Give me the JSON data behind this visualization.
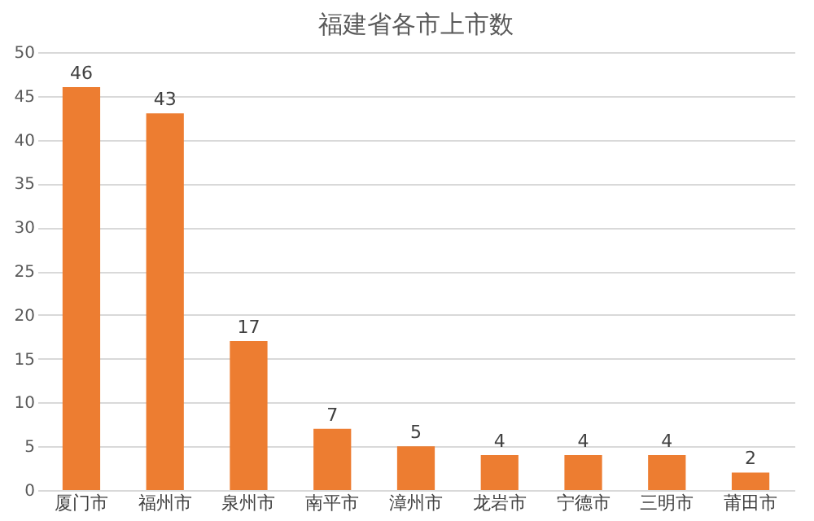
{
  "chart_data": {
    "type": "bar",
    "title": "福建省各市上市数",
    "categories": [
      "厦门市",
      "福州市",
      "泉州市",
      "南平市",
      "漳州市",
      "龙岩市",
      "宁德市",
      "三明市",
      "莆田市"
    ],
    "values": [
      46,
      43,
      17,
      7,
      5,
      4,
      4,
      4,
      2
    ],
    "color": "#ed7d31",
    "ylim": [
      0,
      50
    ],
    "yticks": [
      0,
      5,
      10,
      15,
      20,
      25,
      30,
      35,
      40,
      45,
      50
    ],
    "grid": "y",
    "data_labels": true
  }
}
